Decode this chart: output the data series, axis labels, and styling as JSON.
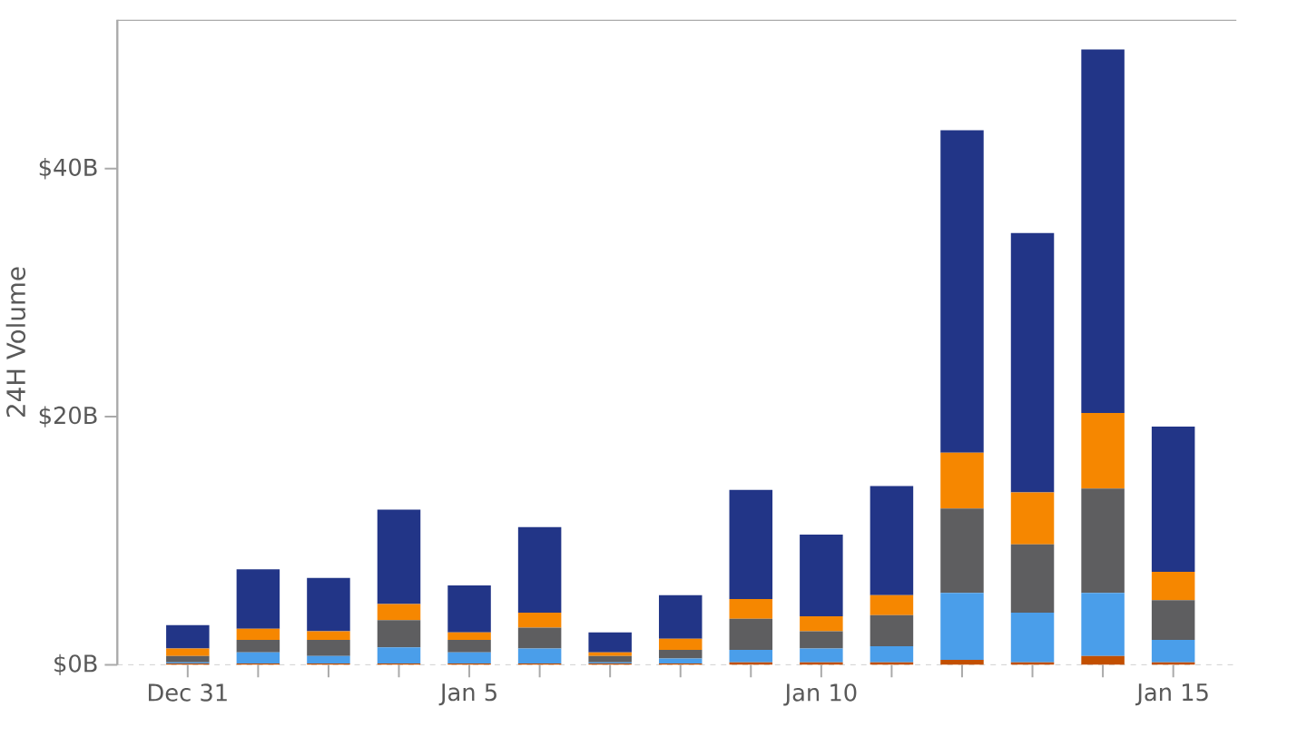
{
  "chart_data": {
    "type": "bar",
    "stacked": true,
    "ylabel": "24H Volume",
    "categories": [
      "Dec 31",
      null,
      null,
      null,
      "Jan 5",
      null,
      null,
      null,
      null,
      "Jan 10",
      null,
      null,
      null,
      null,
      "Jan 15"
    ],
    "series": [
      {
        "color": "#c24f00",
        "values": [
          0.1,
          0.1,
          0.1,
          0.1,
          0.1,
          0.1,
          0.1,
          0.1,
          0.2,
          0.2,
          0.2,
          0.4,
          0.2,
          0.7,
          0.2
        ]
      },
      {
        "color": "#4a9eea",
        "values": [
          0.1,
          0.9,
          0.6,
          1.3,
          0.9,
          1.2,
          0.1,
          0.4,
          1.0,
          1.1,
          1.3,
          5.4,
          4.0,
          5.1,
          1.8
        ]
      },
      {
        "color": "#5e5e60",
        "values": [
          0.5,
          1.0,
          1.3,
          2.2,
          1.0,
          1.7,
          0.5,
          0.7,
          2.5,
          1.4,
          2.5,
          6.8,
          5.5,
          8.4,
          3.2
        ]
      },
      {
        "color": "#f68700",
        "values": [
          0.6,
          0.9,
          0.7,
          1.3,
          0.6,
          1.2,
          0.3,
          0.9,
          1.6,
          1.2,
          1.6,
          4.5,
          4.2,
          6.1,
          2.3
        ]
      },
      {
        "color": "#223587",
        "values": [
          1.9,
          4.8,
          4.3,
          7.6,
          3.8,
          6.9,
          1.6,
          3.5,
          8.8,
          6.6,
          8.8,
          26.0,
          20.9,
          29.3,
          11.7
        ]
      }
    ],
    "ylim": [
      0,
      52
    ],
    "yticks": [
      {
        "value": 0,
        "label": "$0B"
      },
      {
        "value": 20,
        "label": "$20B"
      },
      {
        "value": 40,
        "label": "$40B"
      }
    ]
  }
}
